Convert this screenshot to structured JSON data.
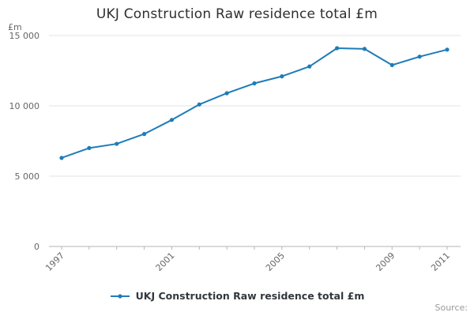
{
  "title": "UKJ Construction Raw residence total £m",
  "legend": {
    "label": "UKJ Construction Raw residence total £m"
  },
  "source": {
    "label": "Source:"
  },
  "colors": {
    "line": "#1e7cb8",
    "grid": "#e3e3e3",
    "axis": "#b5b5b5",
    "tick_text": "#666666",
    "title_text": "#2f2f2f"
  },
  "chart_data": {
    "type": "line",
    "title": "UKJ Construction Raw residence total £m",
    "xlabel": "",
    "ylabel": "£m",
    "x": [
      1997,
      1998,
      1999,
      2000,
      2001,
      2002,
      2003,
      2004,
      2005,
      2006,
      2007,
      2008,
      2009,
      2010,
      2011
    ],
    "series": [
      {
        "name": "UKJ Construction Raw residence total £m",
        "values": [
          6300,
          7000,
          7300,
          8000,
          9000,
          10100,
          10900,
          11600,
          12100,
          12800,
          14100,
          14050,
          12900,
          13500,
          14000
        ]
      }
    ],
    "ylim": [
      0,
      15000
    ],
    "yticks": [
      0,
      5000,
      10000,
      15000
    ],
    "ytick_labels": [
      "0",
      "5 000",
      "10 000",
      "15 000"
    ],
    "xtick_labels": [
      "1997",
      "2001",
      "2005",
      "2009",
      "2011"
    ],
    "grid": "horizontal",
    "legend_position": "bottom"
  }
}
